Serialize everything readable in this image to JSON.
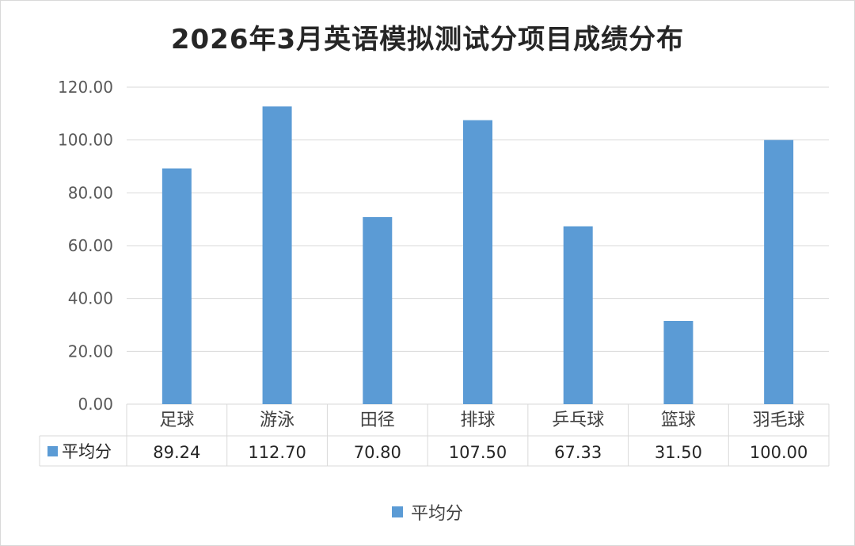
{
  "chart_data": {
    "type": "bar",
    "title": "2026年3月英语模拟测试分项目成绩分布",
    "categories": [
      "足球",
      "游泳",
      "田径",
      "排球",
      "乒乓球",
      "篮球",
      "羽毛球"
    ],
    "series": [
      {
        "name": "平均分",
        "values": [
          89.24,
          112.7,
          70.8,
          107.5,
          67.33,
          31.5,
          100.0
        ],
        "value_labels": [
          "89.24",
          "112.70",
          "70.80",
          "107.50",
          "67.33",
          "31.50",
          "100.00"
        ],
        "color": "#5b9bd5"
      }
    ],
    "ylim": [
      0,
      120
    ],
    "yticks": [
      0,
      20,
      40,
      60,
      80,
      100,
      120
    ],
    "ytick_labels": [
      "0.00",
      "20.00",
      "40.00",
      "60.00",
      "80.00",
      "100.00",
      "120.00"
    ],
    "grid": true,
    "data_table": true,
    "legend_position": "bottom",
    "colors": {
      "bar": "#5b9bd5",
      "grid": "#d9d9d9",
      "text": "#404040"
    }
  }
}
